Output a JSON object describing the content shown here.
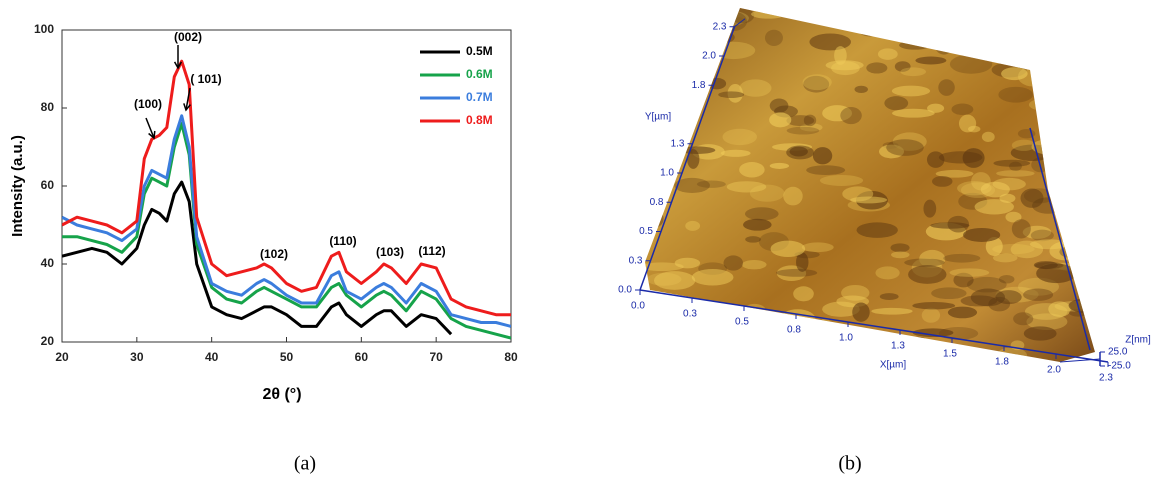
{
  "chart_data": [
    {
      "type": "line",
      "caption": "(a)",
      "x_label": "2θ (°)",
      "y_label": "Intensity (a.u.)",
      "xlim": [
        20,
        80
      ],
      "xticks": [
        20,
        30,
        40,
        50,
        60,
        70,
        80
      ],
      "ylim": [
        20,
        100
      ],
      "yticks": [
        20,
        40,
        60,
        80,
        100
      ],
      "legend": "top-right",
      "annotations": [
        "(002)",
        "( 101)",
        "(100)",
        "(102)",
        "(110)",
        "(103)",
        "(112)"
      ],
      "x": [
        20,
        22,
        24,
        26,
        28,
        30,
        31,
        32,
        33,
        34,
        35,
        36,
        37,
        38,
        40,
        42,
        44,
        46,
        47,
        48,
        50,
        52,
        54,
        56,
        57,
        58,
        60,
        62,
        63,
        64,
        66,
        68,
        70,
        72,
        74,
        76,
        78,
        80
      ],
      "series": [
        {
          "name": "0.5M",
          "color": "#000000",
          "values": [
            42,
            43,
            44,
            43,
            40,
            44,
            50,
            54,
            53,
            51,
            58,
            61,
            56,
            40,
            29,
            27,
            26,
            28,
            29,
            29,
            27,
            24,
            24,
            29,
            30,
            27,
            24,
            27,
            28,
            28,
            24,
            27,
            26,
            22,
            null,
            null,
            null,
            null
          ]
        },
        {
          "name": "0.6M",
          "color": "#16a34a",
          "values": [
            47,
            47,
            46,
            45,
            43,
            47,
            58,
            62,
            61,
            60,
            70,
            76,
            68,
            45,
            34,
            31,
            30,
            33,
            34,
            33,
            31,
            29,
            29,
            34,
            35,
            32,
            29,
            32,
            33,
            32,
            28,
            33,
            31,
            26,
            24,
            23,
            22,
            21
          ]
        },
        {
          "name": "0.7M",
          "color": "#3b7ddd",
          "values": [
            52,
            50,
            49,
            48,
            46,
            49,
            60,
            64,
            63,
            62,
            72,
            78,
            70,
            47,
            35,
            33,
            32,
            35,
            36,
            35,
            32,
            30,
            30,
            37,
            38,
            33,
            31,
            34,
            35,
            34,
            30,
            35,
            33,
            27,
            26,
            25,
            25,
            24
          ]
        },
        {
          "name": "0.8M",
          "color": "#ee1c1c",
          "values": [
            50,
            52,
            51,
            50,
            48,
            51,
            67,
            72,
            73,
            75,
            88,
            92,
            86,
            52,
            40,
            37,
            38,
            39,
            40,
            39,
            35,
            33,
            34,
            42,
            43,
            38,
            35,
            38,
            40,
            39,
            35,
            40,
            39,
            31,
            29,
            28,
            27,
            27
          ]
        }
      ]
    },
    {
      "type": "surface",
      "caption": "(b)",
      "x_label": "X[µm]",
      "y_label": "Y[µm]",
      "z_label": "Z[nm]",
      "xticks": [
        {
          "value": 0,
          "label": "0.0"
        },
        {
          "value": 0.25,
          "label": "0.3"
        },
        {
          "value": 0.5,
          "label": "0.5"
        },
        {
          "value": 0.75,
          "label": "0.8"
        },
        {
          "value": 1,
          "label": "1.0"
        },
        {
          "value": 1.25,
          "label": "1.3"
        },
        {
          "value": 1.5,
          "label": "1.5"
        },
        {
          "value": 1.75,
          "label": "1.8"
        },
        {
          "value": 2,
          "label": "2.0"
        },
        {
          "value": 2.25,
          "label": "2.3"
        }
      ],
      "yticks": [
        {
          "value": 0,
          "label": "0.0"
        },
        {
          "value": 0.25,
          "label": "0.3"
        },
        {
          "value": 0.5,
          "label": "0.5"
        },
        {
          "value": 0.75,
          "label": "0.8"
        },
        {
          "value": 1,
          "label": "1.0"
        },
        {
          "value": 1.25,
          "label": "1.3"
        },
        {
          "value": 1.75,
          "label": "1.8"
        },
        {
          "value": 2,
          "label": "2.0"
        },
        {
          "value": 2.25,
          "label": "2.3"
        }
      ],
      "zticks": [
        {
          "value": 25,
          "label": "25.0"
        },
        {
          "value": -25,
          "label": "-25.0"
        }
      ]
    }
  ]
}
